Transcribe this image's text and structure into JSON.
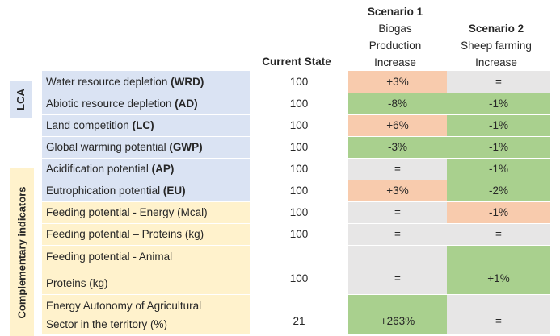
{
  "headers": {
    "current": "Current State",
    "scenario1": [
      "Scenario 1",
      "Biogas",
      "Production",
      "Increase"
    ],
    "scenario2": [
      "Scenario 2",
      "Sheep farming",
      "Increase"
    ]
  },
  "side_labels": {
    "lca": "LCA",
    "complementary": "Complementary indicators"
  },
  "rows": [
    {
      "label": "Water resource depletion ",
      "abbr": "(WRD)",
      "current": "100",
      "s1": "+3%",
      "s2": "="
    },
    {
      "label": "Abiotic resource depletion ",
      "abbr": "(AD)",
      "current": "100",
      "s1": "-8%",
      "s2": "-1%"
    },
    {
      "label": "Land competition ",
      "abbr": "(LC)",
      "current": "100",
      "s1": "+6%",
      "s2": "-1%"
    },
    {
      "label": "Global warming potential ",
      "abbr": "(GWP)",
      "current": "100",
      "s1": "-3%",
      "s2": "-1%"
    },
    {
      "label": "Acidification potential ",
      "abbr": "(AP)",
      "current": "100",
      "s1": "=",
      "s2": "-1%"
    },
    {
      "label": "Eutrophication potential ",
      "abbr": "(EU)",
      "current": "100",
      "s1": "+3%",
      "s2": "-2%"
    },
    {
      "label": "Feeding potential - Energy (Mcal)",
      "current": "100",
      "s1": "=",
      "s2": "-1%"
    },
    {
      "label": "Feeding potential – Proteins (kg)",
      "current": "100",
      "s1": "=",
      "s2": "="
    },
    {
      "label": [
        "Feeding potential - Animal",
        "Proteins (kg)"
      ],
      "current": "100",
      "s1": "=",
      "s2": "+1%"
    },
    {
      "label": [
        "Energy Autonomy of Agricultural",
        "Sector in the territory (%)"
      ],
      "current": "21",
      "s1": "+263%",
      "s2": "="
    }
  ],
  "colors": {
    "increase": "#f8cbad",
    "decrease": "#a9d08e",
    "neutral": "#e7e6e6",
    "lca_indicator": "#dae3f3",
    "complementary_indicator": "#fff2cc"
  }
}
